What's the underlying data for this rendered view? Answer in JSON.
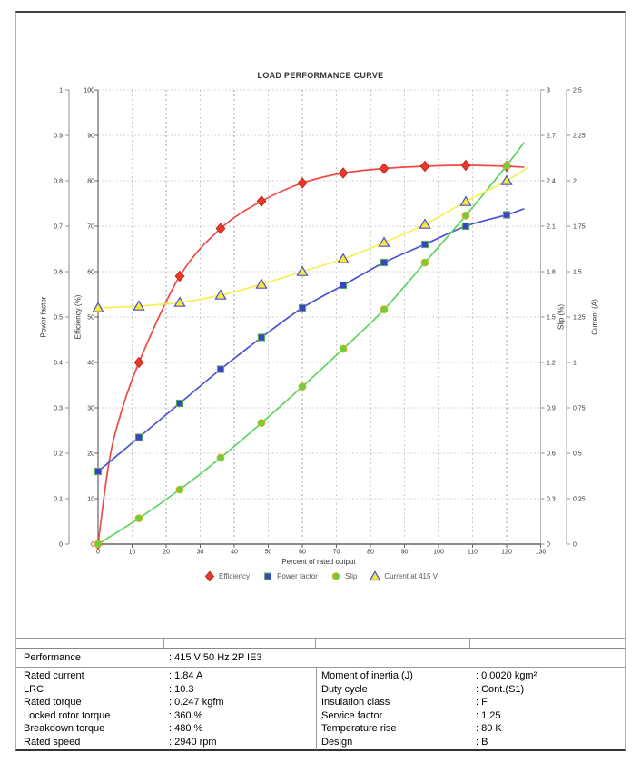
{
  "chart_data": {
    "type": "line",
    "title": "LOAD PERFORMANCE CURVE",
    "grid": "dashed",
    "legend_position": "bottom",
    "x_axis": {
      "label": "Percent of rated output",
      "range": [
        0,
        130
      ],
      "ticks": [
        "0",
        "10",
        "20",
        "30",
        "40",
        "50",
        "60",
        "70",
        "80",
        "90",
        "100",
        "110",
        "120",
        "130"
      ]
    },
    "y_axes": [
      {
        "id": "power_factor",
        "label": "Power factor",
        "side": "left",
        "range": [
          0,
          1
        ],
        "ticks": [
          "1",
          "0.9",
          "0.8",
          "0.7",
          "0.6",
          "0.5",
          "0.4",
          "0.3",
          "0.2",
          "0.1",
          "0"
        ]
      },
      {
        "id": "efficiency",
        "label": "Efficiency (%)",
        "side": "left",
        "range": [
          0,
          100
        ],
        "ticks": [
          "100",
          "90",
          "80",
          "70",
          "60",
          "50",
          "40",
          "30",
          "20",
          "10",
          "0"
        ]
      },
      {
        "id": "slip",
        "label": "Slip (%)",
        "side": "right",
        "range": [
          0,
          3
        ],
        "ticks": [
          "3",
          "2.7",
          "2.4",
          "2.1",
          "1.8",
          "1.5",
          "1.2",
          "0.9",
          "0.6",
          "0.3",
          "0"
        ]
      },
      {
        "id": "current",
        "label": "Current (A)",
        "side": "right",
        "range": [
          0,
          2.5
        ],
        "ticks": [
          "2.5",
          "2.25",
          "2",
          "1.75",
          "1.5",
          "1.25",
          "1",
          "0.75",
          "0.5",
          "0.25",
          "0"
        ]
      }
    ],
    "series": [
      {
        "name": "Efficiency",
        "axis": "efficiency",
        "axis_max": 100,
        "color": "#ef4b45",
        "marker": "diamond",
        "marker_fill": "#e8392d",
        "marker_edge": "#c8281e",
        "marker_points": [
          [
            0,
            0
          ],
          [
            12,
            40
          ],
          [
            24,
            59
          ],
          [
            36,
            69.5
          ],
          [
            48,
            75.5
          ],
          [
            60,
            79.5
          ],
          [
            72,
            81.7
          ],
          [
            84,
            82.7
          ],
          [
            96,
            83.2
          ],
          [
            108,
            83.4
          ],
          [
            120,
            83.2
          ]
        ],
        "line_points": [
          [
            0,
            0
          ],
          [
            3,
            17
          ],
          [
            6,
            27
          ],
          [
            12,
            40
          ],
          [
            24,
            59
          ],
          [
            36,
            69.5
          ],
          [
            48,
            75.5
          ],
          [
            60,
            79.5
          ],
          [
            72,
            81.7
          ],
          [
            84,
            82.7
          ],
          [
            96,
            83.2
          ],
          [
            108,
            83.4
          ],
          [
            120,
            83.2
          ],
          [
            125,
            83.0
          ]
        ]
      },
      {
        "name": "Power factor",
        "axis": "power_factor",
        "axis_max": 1,
        "color": "#4a52d0",
        "marker": "square",
        "marker_fill": "#3b43c4",
        "marker_edge": "#58b158",
        "marker_points": [
          [
            0,
            0.16
          ],
          [
            12,
            0.235
          ],
          [
            24,
            0.31
          ],
          [
            36,
            0.385
          ],
          [
            48,
            0.455
          ],
          [
            60,
            0.52
          ],
          [
            72,
            0.57
          ],
          [
            84,
            0.62
          ],
          [
            96,
            0.66
          ],
          [
            108,
            0.7
          ],
          [
            120,
            0.725
          ]
        ],
        "line_points": [
          [
            0,
            0.16
          ],
          [
            12,
            0.235
          ],
          [
            24,
            0.31
          ],
          [
            36,
            0.385
          ],
          [
            48,
            0.455
          ],
          [
            60,
            0.52
          ],
          [
            72,
            0.57
          ],
          [
            84,
            0.62
          ],
          [
            96,
            0.66
          ],
          [
            108,
            0.7
          ],
          [
            120,
            0.725
          ],
          [
            125,
            0.738
          ]
        ]
      },
      {
        "name": "Slip",
        "axis": "slip",
        "axis_max": 3,
        "color": "#5fd35f",
        "marker": "circle",
        "marker_fill": "#67d23c",
        "marker_edge": "#e9a825",
        "marker_points": [
          [
            0,
            0
          ],
          [
            12,
            0.17
          ],
          [
            24,
            0.36
          ],
          [
            36,
            0.57
          ],
          [
            48,
            0.8
          ],
          [
            60,
            1.04
          ],
          [
            72,
            1.29
          ],
          [
            84,
            1.55
          ],
          [
            96,
            1.86
          ],
          [
            108,
            2.17
          ],
          [
            120,
            2.5
          ]
        ],
        "line_points": [
          [
            0,
            0
          ],
          [
            12,
            0.17
          ],
          [
            24,
            0.36
          ],
          [
            36,
            0.57
          ],
          [
            48,
            0.8
          ],
          [
            60,
            1.04
          ],
          [
            72,
            1.29
          ],
          [
            84,
            1.55
          ],
          [
            96,
            1.86
          ],
          [
            108,
            2.17
          ],
          [
            120,
            2.5
          ],
          [
            125,
            2.65
          ]
        ]
      },
      {
        "name": "Current at 415 V",
        "axis": "current",
        "axis_max": 2.5,
        "color": "#f6ef55",
        "marker": "triangle",
        "marker_fill": "#f7e83b",
        "marker_edge": "#4a50cc",
        "marker_points": [
          [
            0,
            1.3
          ],
          [
            12,
            1.31
          ],
          [
            24,
            1.33
          ],
          [
            36,
            1.37
          ],
          [
            48,
            1.43
          ],
          [
            60,
            1.5
          ],
          [
            72,
            1.57
          ],
          [
            84,
            1.66
          ],
          [
            96,
            1.76
          ],
          [
            108,
            1.885
          ],
          [
            120,
            2.0
          ]
        ],
        "line_points": [
          [
            0,
            1.3
          ],
          [
            12,
            1.31
          ],
          [
            24,
            1.33
          ],
          [
            36,
            1.37
          ],
          [
            48,
            1.43
          ],
          [
            60,
            1.5
          ],
          [
            72,
            1.57
          ],
          [
            84,
            1.66
          ],
          [
            96,
            1.76
          ],
          [
            108,
            1.885
          ],
          [
            120,
            2.0
          ],
          [
            126,
            2.07
          ]
        ]
      }
    ],
    "legend": [
      {
        "label": "Efficiency",
        "marker": "diamond",
        "fill": "#e8392d",
        "edge": "#c8281e"
      },
      {
        "label": "Power factor",
        "marker": "square",
        "fill": "#3b43c4",
        "edge": "#58b158"
      },
      {
        "label": "Slip",
        "marker": "circle",
        "fill": "#67d23c",
        "edge": "#e9a825"
      },
      {
        "label": "Current at 415 V",
        "marker": "triangle",
        "fill": "#f7e83b",
        "edge": "#4a50cc"
      }
    ]
  },
  "table": {
    "header": {
      "label": "Performance",
      "value": ": 415 V 50 Hz 2P IE3"
    },
    "left_rows": [
      {
        "label": "Rated current",
        "value": ": 1.84 A"
      },
      {
        "label": "LRC",
        "value": ": 10.3"
      },
      {
        "label": "Rated torque",
        "value": ": 0.247 kgfm"
      },
      {
        "label": "Locked rotor torque",
        "value": ": 360 %"
      },
      {
        "label": "Breakdown torque",
        "value": ": 480 %"
      },
      {
        "label": "Rated speed",
        "value": ": 2940 rpm"
      }
    ],
    "right_rows": [
      {
        "label": "Moment of inertia (J)",
        "value": ": 0.0020 kgm²"
      },
      {
        "label": "Duty cycle",
        "value": ": Cont.(S1)"
      },
      {
        "label": "Insulation class",
        "value": ": F"
      },
      {
        "label": "Service factor",
        "value": ": 1.25"
      },
      {
        "label": "Temperature rise",
        "value": ": 80 K"
      },
      {
        "label": "Design",
        "value": ": B"
      }
    ]
  }
}
